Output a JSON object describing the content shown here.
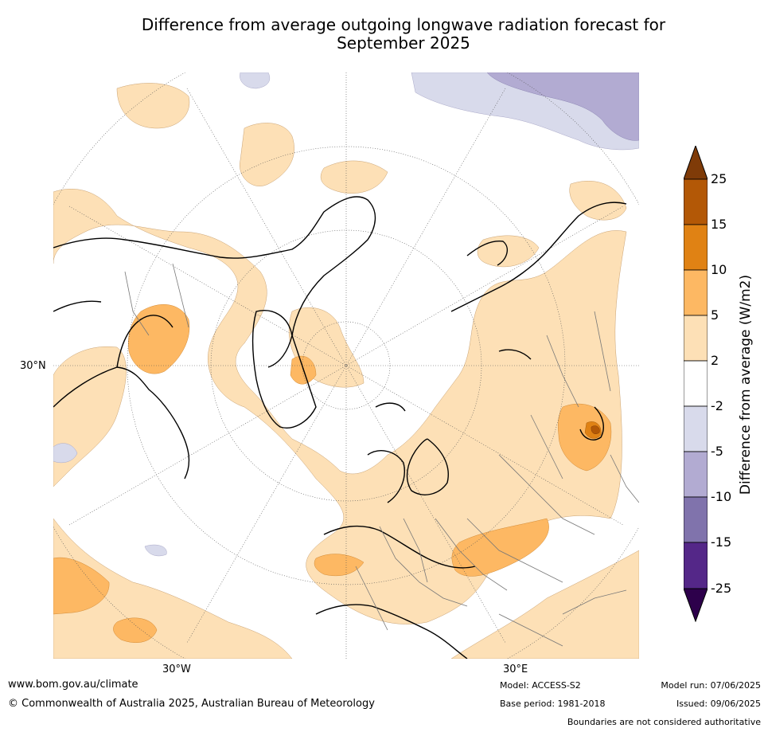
{
  "header": {
    "title_line1": "Difference from average outgoing longwave radiation forecast for",
    "title_line2": "September 2025"
  },
  "map": {
    "projection": "north-polar-stereographic",
    "lat_labels": [
      "30°N"
    ],
    "lon_labels": [
      "30°W",
      "30°E"
    ],
    "colors": {
      "pos_2_5": "#fde0b6",
      "pos_5_10": "#fdb863",
      "pos_10_15": "#e08214",
      "pos_15_25": "#b35806",
      "pos_gt_25": "#7f3b08",
      "neg_2_5": "#d8daeb",
      "neg_5_10": "#b2abd2",
      "neg_10_15": "#8073ac",
      "neg_15_25": "#542788",
      "neg_lt_25": "#2d004b"
    }
  },
  "colorbar": {
    "ticks": [
      "25",
      "15",
      "10",
      "5",
      "2",
      "-2",
      "-5",
      "-10",
      "-15",
      "-25"
    ],
    "label": "Difference from average (W/m2)",
    "colors_top_to_bottom": [
      "#7f3b08",
      "#b35806",
      "#e08214",
      "#fdb863",
      "#fde0b6",
      "#ffffff",
      "#d8daeb",
      "#b2abd2",
      "#8073ac",
      "#542788",
      "#2d004b"
    ]
  },
  "footer": {
    "website": "www.bom.gov.au/climate",
    "copyright": "© Commonwealth of Australia 2025, Australian Bureau of Meteorology",
    "model": "Model: ACCESS-S2",
    "base_period": "Base period: 1981-2018",
    "model_run": "Model run: 07/06/2025",
    "issued": "Issued: 09/06/2025",
    "disclaimer": "Boundaries are not considered authoritative"
  }
}
